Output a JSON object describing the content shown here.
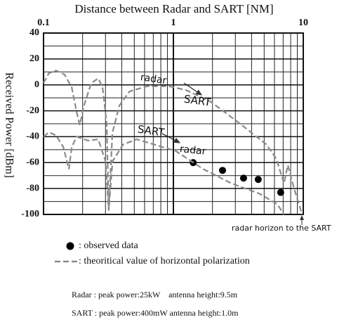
{
  "chart_data": {
    "type": "line",
    "title": "Distance between Radar and SART [NM]",
    "ylabel": "Received Power [dBm]",
    "xscale": "log",
    "xlim": [
      0.1,
      10
    ],
    "xticks": [
      0.1,
      1,
      10
    ],
    "xminorticks": [
      0.2,
      0.3,
      0.4,
      0.5,
      0.6,
      0.7,
      0.8,
      0.9,
      2,
      3,
      4,
      5,
      6,
      7,
      8,
      9
    ],
    "ylim": [
      -100,
      40
    ],
    "yticks": [
      -100,
      -80,
      -60,
      -40,
      -20,
      0,
      20,
      40
    ],
    "yminorticks": [
      -90,
      -70,
      -50,
      -30,
      -10,
      10,
      30
    ],
    "grid": true,
    "series": [
      {
        "name": ": observed data",
        "type": "scatter",
        "color": "#000000",
        "x": [
          1.42,
          2.39,
          3.47,
          4.5,
          6.7
        ],
        "values": [
          -60,
          -66,
          -72,
          -73,
          -83
        ]
      },
      {
        "name": ": theoritical value of horizontal polarization",
        "type": "line",
        "color": "#8a8a8a",
        "curves": [
          {
            "x": [
              0.1,
              0.11,
              0.125,
              0.145,
              0.165,
              0.18,
              0.19,
              0.205,
              0.233,
              0.264,
              0.285,
              0.306,
              0.318,
              0.339,
              0.384,
              0.46,
              0.63,
              0.92,
              1.25,
              1.94,
              3.17,
              5.2,
              6.2,
              7.1,
              7.6,
              8.5,
              9.8
            ],
            "values": [
              1.5,
              9,
              11,
              8,
              -2,
              -21,
              -31,
              -16,
              1.5,
              5,
              -2,
              -29,
              -97,
              -37,
              -16,
              -5,
              -1,
              -1,
              -4,
              -13,
              -29,
              -46,
              -57,
              -76,
              -62,
              -80,
              -100
            ]
          },
          {
            "x": [
              0.1,
              0.11,
              0.125,
              0.142,
              0.157,
              0.165,
              0.18,
              0.22,
              0.264,
              0.3,
              0.318,
              0.34,
              0.41,
              0.52,
              0.71,
              1.04,
              1.7,
              2.8,
              4.6,
              6.3,
              7.1
            ],
            "values": [
              -40,
              -36.5,
              -39,
              -48,
              -65,
              -48,
              -40,
              -43,
              -42,
              -59,
              -97,
              -59,
              -46,
              -42,
              -46,
              -51,
              -65,
              -76,
              -84,
              -92,
              -100
            ]
          }
        ]
      }
    ],
    "annotations": [
      "radar",
      "SART",
      "SART",
      "radar",
      "radar horizon to the SART"
    ],
    "notes": [
      "Radar : peak power:25kW    antenna height:9.5m",
      "SART : peak power:400mW antenna height:1.0m"
    ]
  }
}
